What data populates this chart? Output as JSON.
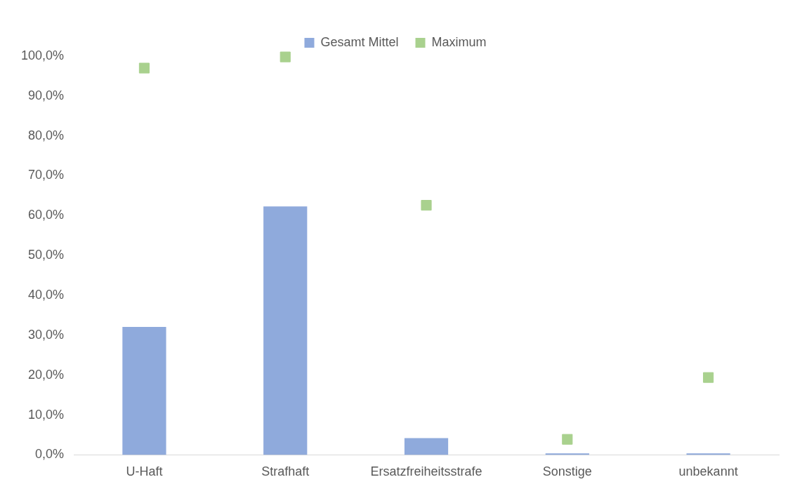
{
  "chart_data": {
    "type": "bar",
    "categories": [
      "U-Haft",
      "Strafhaft",
      "Ersatzfreiheitsstrafe",
      "Sonstige",
      "unbekannt"
    ],
    "series": [
      {
        "name": "Gesamt Mittel",
        "color": "#8faadc",
        "values": [
          32.1,
          62.3,
          4.2,
          0.4,
          0.4
        ]
      },
      {
        "name": "Maximum",
        "type": "scatter",
        "color": "#a9d18e",
        "x": [
          "U-Haft",
          "Strafhaft",
          "Ersatzfreiheitsstrafe",
          "Sonstige",
          "unbekannt"
        ],
        "values": [
          97.0,
          99.8,
          62.6,
          3.9,
          19.4
        ]
      }
    ],
    "ylim": [
      0,
      100
    ],
    "yticks": [
      {
        "value": 0,
        "label": "0,0%"
      },
      {
        "value": 10,
        "label": "10,0%"
      },
      {
        "value": 20,
        "label": "20,0%"
      },
      {
        "value": 30,
        "label": "30,0%"
      },
      {
        "value": 40,
        "label": "40,0%"
      },
      {
        "value": 50,
        "label": "50,0%"
      },
      {
        "value": 60,
        "label": "60,0%"
      },
      {
        "value": 70,
        "label": "70,0%"
      },
      {
        "value": 80,
        "label": "80,0%"
      },
      {
        "value": 90,
        "label": "90,0%"
      },
      {
        "value": 100,
        "label": "100,0%"
      }
    ],
    "grid": false,
    "legend": "top",
    "marker": "square"
  }
}
